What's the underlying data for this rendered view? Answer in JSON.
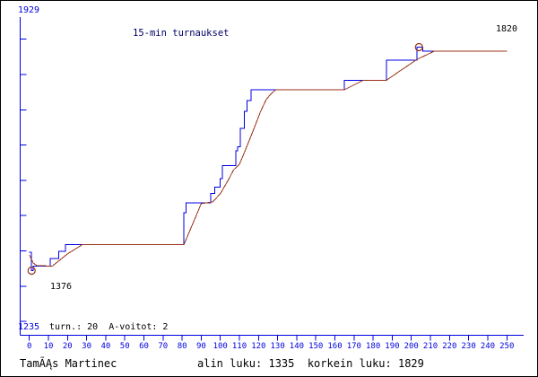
{
  "colors": {
    "axis_blue": "#0000e0",
    "series_blue": "#0000e0",
    "series_brown": "#993218",
    "title_navy": "#000066",
    "text_black": "#000000",
    "background": "#ffffff"
  },
  "labels": {
    "y_axis_max": "1929",
    "y_axis_min": "1235",
    "start_value": "1376",
    "end_value": "1820"
  },
  "info_line": {
    "text": "turn.: 20  A-voitot: 2"
  },
  "footer": {
    "player": "TamÃĄs Martinec",
    "stats": "alin luku: 1335  korkein luku: 1829"
  },
  "chart_data": {
    "type": "line",
    "title": "15-min turnaukset",
    "xlabel": "",
    "ylabel": "",
    "xlim": [
      0,
      250
    ],
    "ylim": [
      1235,
      1929
    ],
    "grid": false,
    "legend": false,
    "lowest_value": 1335,
    "highest_value": 1829,
    "first_value": 1376,
    "final_value": 1820,
    "x_ticks": [
      0,
      10,
      20,
      30,
      40,
      50,
      60,
      70,
      80,
      90,
      100,
      110,
      120,
      130,
      140,
      150,
      160,
      170,
      180,
      190,
      200,
      210,
      220,
      230,
      240,
      250
    ],
    "y_tick_count": 9,
    "series": [
      {
        "name": "rating",
        "type": "step",
        "color_key": "series_blue",
        "points": [
          [
            0,
            1376
          ],
          [
            1,
            1335
          ],
          [
            2,
            1345
          ],
          [
            11,
            1362
          ],
          [
            15.5,
            1378
          ],
          [
            19,
            1393
          ],
          [
            81,
            1463
          ],
          [
            82,
            1485
          ],
          [
            95,
            1506
          ],
          [
            97,
            1519
          ],
          [
            100,
            1538
          ],
          [
            101,
            1567
          ],
          [
            108,
            1600
          ],
          [
            109,
            1609
          ],
          [
            110.5,
            1649
          ],
          [
            112.5,
            1687
          ],
          [
            114,
            1711
          ],
          [
            116,
            1735
          ],
          [
            165,
            1756
          ],
          [
            187,
            1800
          ],
          [
            203,
            1829
          ],
          [
            206,
            1820
          ],
          [
            250,
            1820
          ]
        ]
      },
      {
        "name": "smoothed-rating",
        "type": "linear",
        "color_key": "series_brown",
        "points": [
          [
            0,
            1370
          ],
          [
            2,
            1352
          ],
          [
            4,
            1346
          ],
          [
            12,
            1345
          ],
          [
            20,
            1372
          ],
          [
            28,
            1393
          ],
          [
            81,
            1393
          ],
          [
            90,
            1483
          ],
          [
            96,
            1487
          ],
          [
            100,
            1505
          ],
          [
            104,
            1534
          ],
          [
            107,
            1558
          ],
          [
            110,
            1570
          ],
          [
            113,
            1600
          ],
          [
            118,
            1653
          ],
          [
            121,
            1686
          ],
          [
            124,
            1713
          ],
          [
            126,
            1723
          ],
          [
            129,
            1735
          ],
          [
            165,
            1735
          ],
          [
            175,
            1756
          ],
          [
            187,
            1756
          ],
          [
            203,
            1802
          ],
          [
            208,
            1812
          ],
          [
            212,
            1820
          ],
          [
            250,
            1820
          ]
        ]
      }
    ],
    "markers": [
      {
        "name": "min-rating-marker",
        "t": 1.2,
        "value": 1335
      },
      {
        "name": "max-rating-marker",
        "t": 204,
        "value": 1829
      }
    ]
  }
}
